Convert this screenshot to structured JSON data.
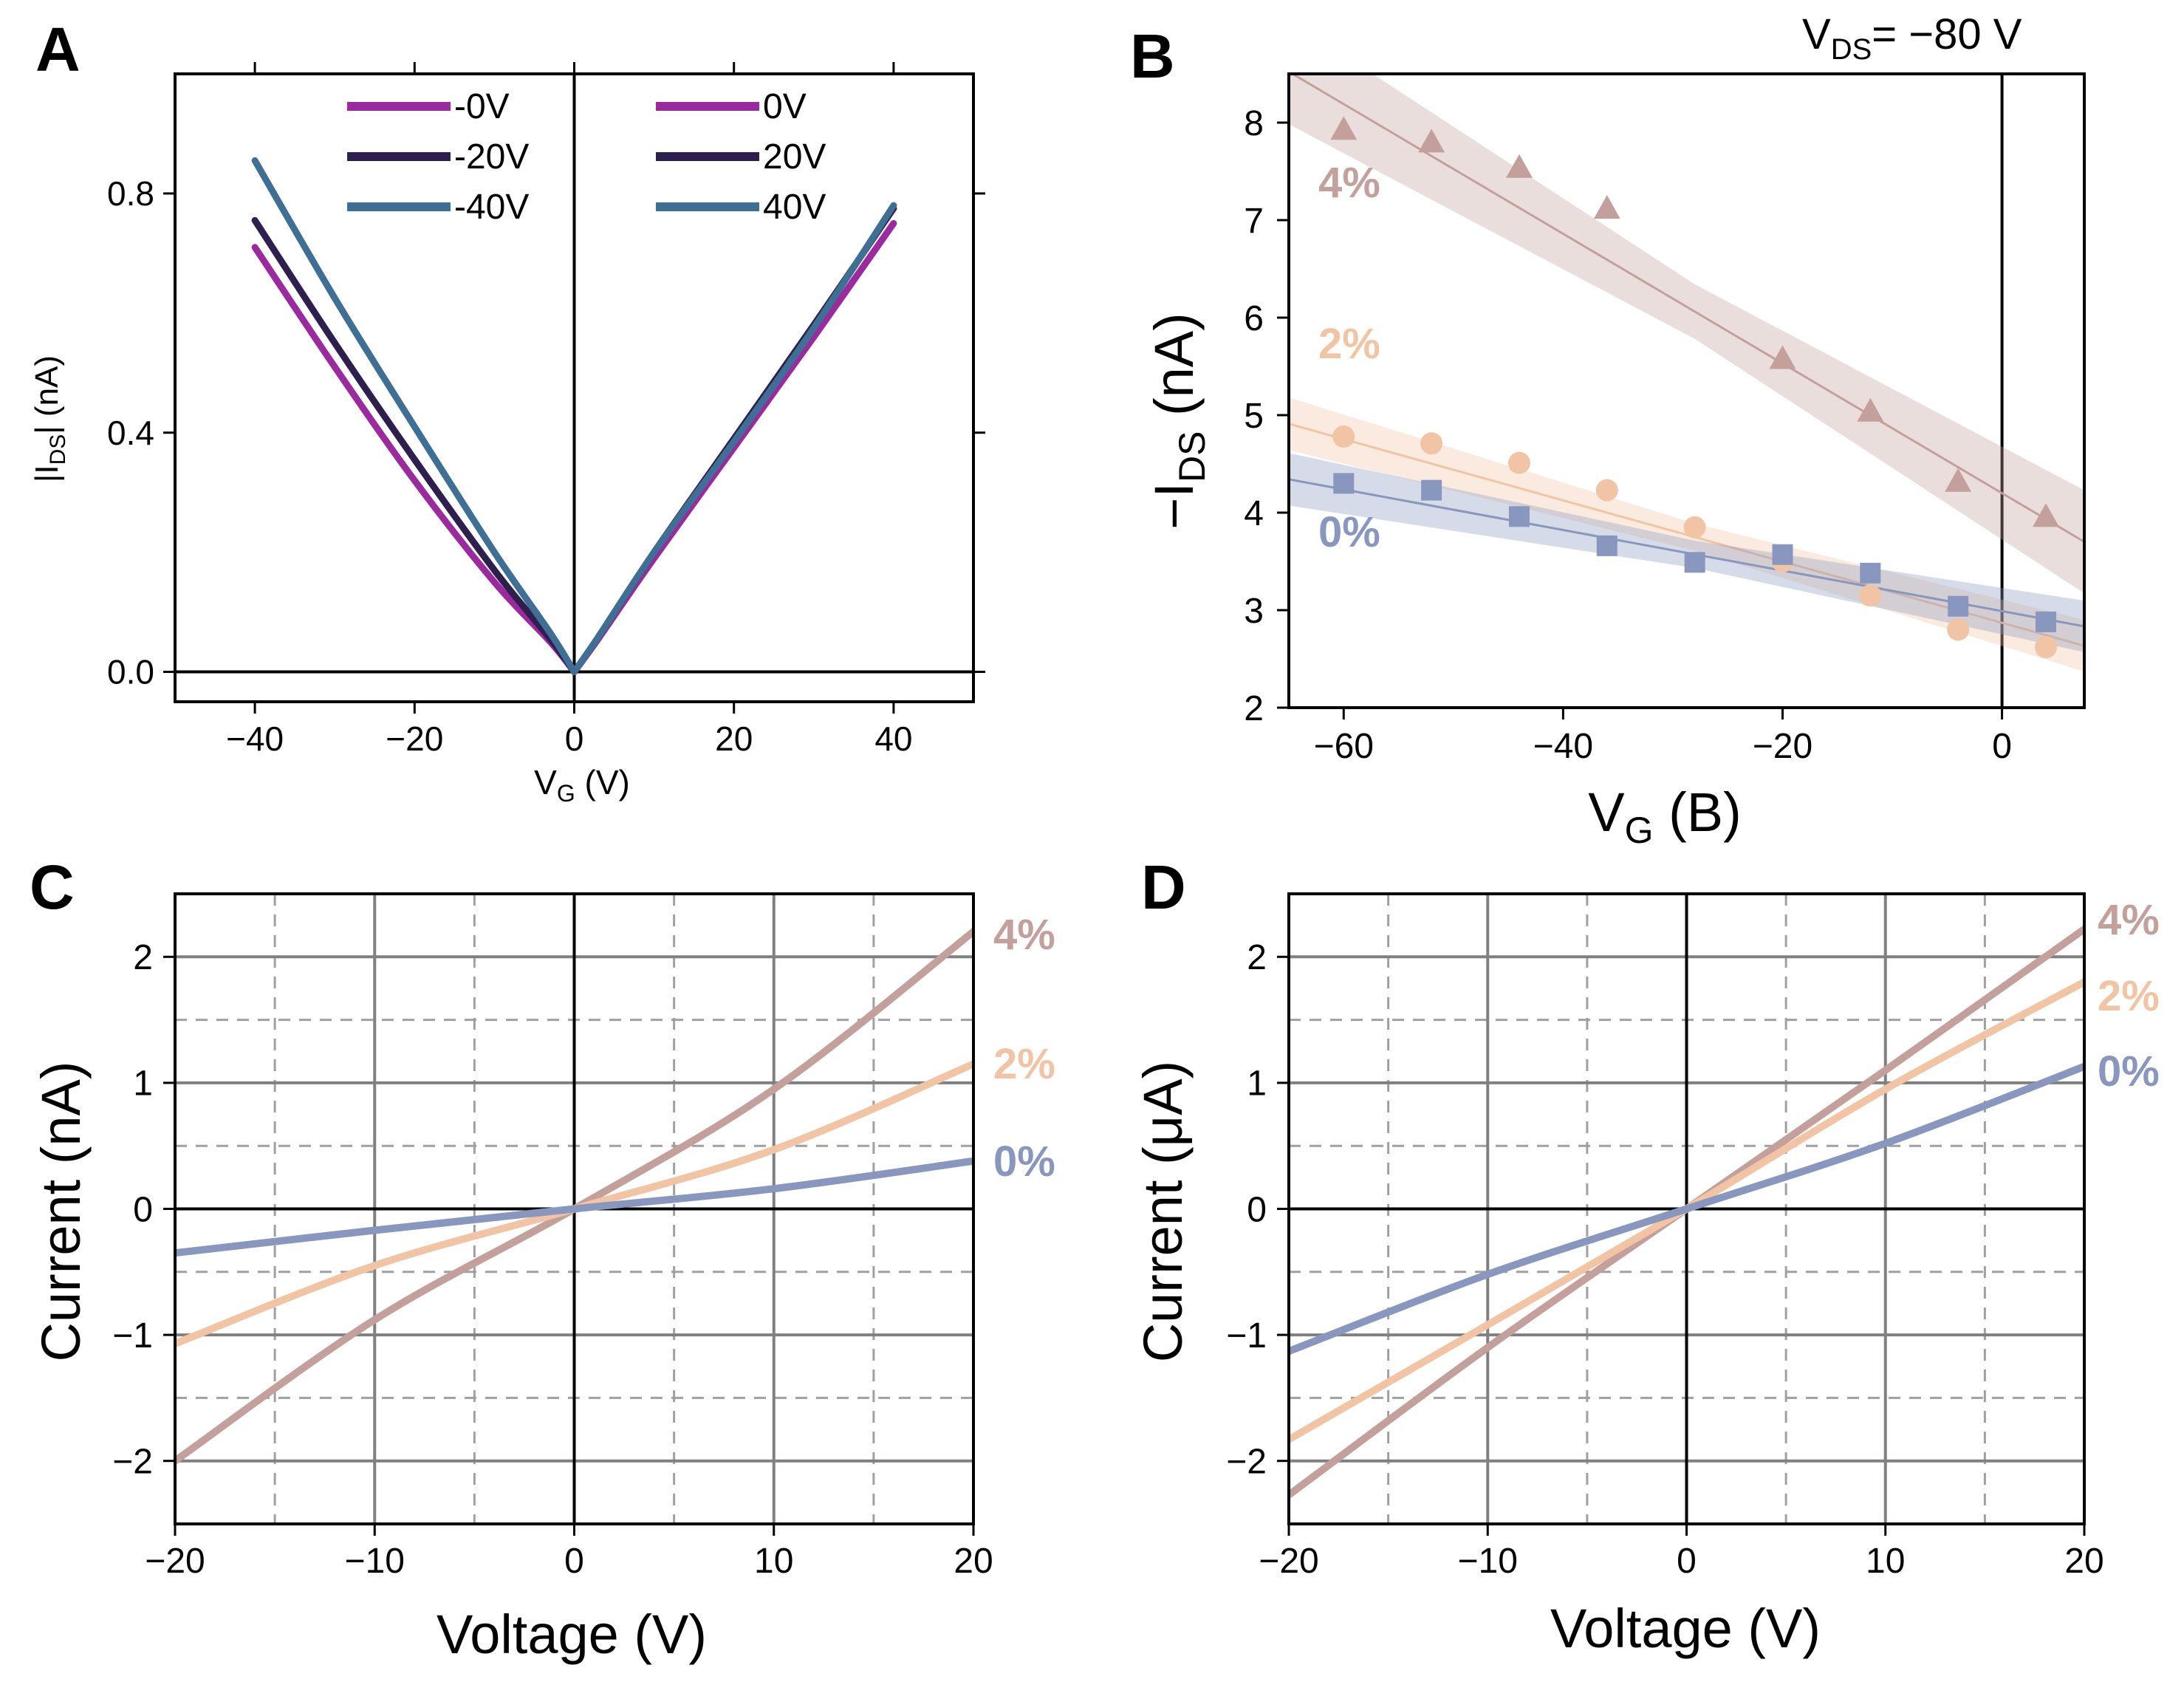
{
  "chart_data": [
    {
      "id": "A",
      "type": "line",
      "panel_label": "A",
      "xlabel_main": "V",
      "xlabel_sub": "G",
      "xlabel_rest": " (V)",
      "ylabel_main": "|I",
      "ylabel_sub": "DS",
      "ylabel_rest": "| (nA)",
      "xlim": [
        -50,
        50
      ],
      "ylim": [
        -0.05,
        1.0
      ],
      "xticks": [
        -40,
        -20,
        0,
        20,
        40
      ],
      "yticks": [
        0.0,
        0.4,
        0.8
      ],
      "xtick_labels": [
        "−40",
        "−20",
        "0",
        "20",
        "40"
      ],
      "ytick_labels": [
        "0.0",
        "0.4",
        "0.8"
      ],
      "zero_lines": true,
      "grid": false,
      "legend": [
        {
          "label": "-0V",
          "color": "#9b2a9e"
        },
        {
          "label": "-20V",
          "color": "#2e1f4f"
        },
        {
          "label": "-40V",
          "color": "#3f6f94"
        },
        {
          "label": "0V",
          "color": "#9b2a9e"
        },
        {
          "label": "20V",
          "color": "#2e1f4f"
        },
        {
          "label": "40V",
          "color": "#3f6f94"
        }
      ],
      "series": [
        {
          "name": "-0V",
          "color": "#9b2a9e",
          "x": [
            -40,
            -30,
            -20,
            -10,
            -3,
            0
          ],
          "y": [
            0.71,
            0.51,
            0.32,
            0.15,
            0.05,
            0.0
          ]
        },
        {
          "name": "-20V",
          "color": "#2e1f4f",
          "x": [
            -40,
            -30,
            -20,
            -10,
            -3,
            0
          ],
          "y": [
            0.755,
            0.55,
            0.355,
            0.17,
            0.055,
            0.0
          ]
        },
        {
          "name": "-40V",
          "color": "#3f6f94",
          "x": [
            -40,
            -30,
            -20,
            -10,
            -3,
            0
          ],
          "y": [
            0.855,
            0.625,
            0.41,
            0.2,
            0.065,
            0.0
          ]
        },
        {
          "name": "0V",
          "color": "#9b2a9e",
          "x": [
            0,
            3,
            10,
            20,
            30,
            40
          ],
          "y": [
            0.0,
            0.055,
            0.19,
            0.375,
            0.56,
            0.75
          ]
        },
        {
          "name": "20V",
          "color": "#2e1f4f",
          "x": [
            0,
            3,
            10,
            20,
            30,
            40
          ],
          "y": [
            0.0,
            0.058,
            0.2,
            0.39,
            0.58,
            0.775
          ]
        },
        {
          "name": "40V",
          "color": "#3f6f94",
          "x": [
            0,
            3,
            10,
            20,
            30,
            40
          ],
          "y": [
            0.0,
            0.058,
            0.2,
            0.385,
            0.575,
            0.78
          ]
        }
      ]
    },
    {
      "id": "B",
      "type": "scatter",
      "panel_label": "B",
      "annotation_main": "V",
      "annotation_sub": "DS",
      "annotation_rest": "= −80 V",
      "xlabel_main": "V",
      "xlabel_sub": "G",
      "xlabel_rest": " (B)",
      "ylabel_main": "−I",
      "ylabel_sub": "DS",
      "ylabel_rest": " (nA)",
      "xlim": [
        -65,
        7.5
      ],
      "ylim": [
        2,
        8.5
      ],
      "xticks": [
        -60,
        -40,
        -20,
        0
      ],
      "yticks": [
        2,
        3,
        4,
        5,
        6,
        7,
        8
      ],
      "xtick_labels": [
        "−60",
        "−40",
        "−20",
        "0"
      ],
      "ytick_labels": [
        "2",
        "3",
        "4",
        "5",
        "6",
        "7",
        "8"
      ],
      "vline_x": 0,
      "grid": false,
      "series": [
        {
          "name": "4%",
          "label": "4%",
          "color": "#c4a09c",
          "marker": "triangle",
          "x": [
            -60,
            -52,
            -44,
            -36,
            -20,
            -12,
            -4,
            4
          ],
          "y": [
            7.93,
            7.8,
            7.54,
            7.12,
            5.58,
            5.04,
            4.32,
            3.96
          ],
          "fit": {
            "slope": -0.0665,
            "intercept": 4.2,
            "band": 0.28
          }
        },
        {
          "name": "2%",
          "label": "2%",
          "color": "#f0c4a4",
          "marker": "circle",
          "x": [
            -60,
            -52,
            -44,
            -36,
            -28,
            -20,
            -12,
            -4,
            4
          ],
          "y": [
            4.78,
            4.71,
            4.51,
            4.23,
            3.85,
            3.5,
            3.15,
            2.8,
            2.62
          ],
          "fit": {
            "slope": -0.0314,
            "intercept": 2.87,
            "band": 0.14
          }
        },
        {
          "name": "0%",
          "label": "0%",
          "color": "#8997bf",
          "marker": "square",
          "x": [
            -60,
            -52,
            -44,
            -36,
            -28,
            -20,
            -12,
            -4,
            4
          ],
          "y": [
            4.3,
            4.23,
            3.96,
            3.66,
            3.49,
            3.57,
            3.38,
            3.04,
            2.88
          ],
          "fit": {
            "slope": -0.0208,
            "intercept": 2.99,
            "band": 0.14
          }
        }
      ]
    },
    {
      "id": "C",
      "type": "line",
      "panel_label": "C",
      "xlabel": "Voltage (V)",
      "ylabel": "Current (nA)",
      "xlim": [
        -20,
        20
      ],
      "ylim": [
        -2.5,
        2.5
      ],
      "xticks": [
        -20,
        -10,
        0,
        10,
        20
      ],
      "yticks": [
        -2,
        -1,
        0,
        1,
        2
      ],
      "xtick_labels": [
        "−20",
        "−10",
        "0",
        "10",
        "20"
      ],
      "ytick_labels": [
        "−2",
        "−1",
        "0",
        "1",
        "2"
      ],
      "grid": true,
      "series": [
        {
          "name": "4%",
          "label": "4%",
          "color": "#c4a09c",
          "x": [
            -20,
            -10,
            0,
            10,
            20
          ],
          "y": [
            -2.0,
            -0.88,
            0.0,
            0.95,
            2.2
          ]
        },
        {
          "name": "2%",
          "label": "2%",
          "color": "#f0c4a4",
          "x": [
            -20,
            -10,
            0,
            10,
            20
          ],
          "y": [
            -1.07,
            -0.45,
            0.0,
            0.47,
            1.15
          ]
        },
        {
          "name": "0%",
          "label": "0%",
          "color": "#8997bf",
          "x": [
            -20,
            -10,
            0,
            10,
            20
          ],
          "y": [
            -0.35,
            -0.17,
            0.0,
            0.16,
            0.38
          ]
        }
      ]
    },
    {
      "id": "D",
      "type": "line",
      "panel_label": "D",
      "xlabel": "Voltage (V)",
      "ylabel": "Current (μA)",
      "xlim": [
        -20,
        20
      ],
      "ylim": [
        -2.5,
        2.5
      ],
      "xticks": [
        -20,
        -10,
        0,
        10,
        20
      ],
      "yticks": [
        -2,
        -1,
        0,
        1,
        2
      ],
      "xtick_labels": [
        "−20",
        "−10",
        "0",
        "10",
        "20"
      ],
      "ytick_labels": [
        "−2",
        "−1",
        "0",
        "1",
        "2"
      ],
      "grid": true,
      "series": [
        {
          "name": "4%",
          "label": "4%",
          "color": "#c4a09c",
          "x": [
            -20,
            -10,
            0,
            10,
            20
          ],
          "y": [
            -2.27,
            -1.1,
            0.0,
            1.1,
            2.22
          ]
        },
        {
          "name": "2%",
          "label": "2%",
          "color": "#f0c4a4",
          "x": [
            -20,
            -10,
            0,
            10,
            20
          ],
          "y": [
            -1.83,
            -0.92,
            0.0,
            0.95,
            1.8
          ]
        },
        {
          "name": "0%",
          "label": "0%",
          "color": "#8997bf",
          "x": [
            -20,
            -10,
            0,
            10,
            20
          ],
          "y": [
            -1.13,
            -0.52,
            0.0,
            0.52,
            1.13
          ]
        }
      ]
    }
  ]
}
